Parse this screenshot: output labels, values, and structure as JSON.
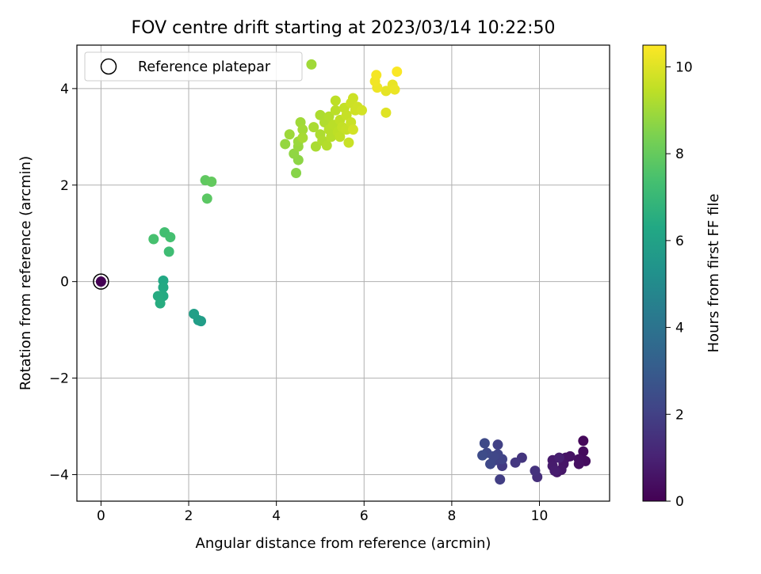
{
  "chart_data": {
    "type": "scatter",
    "title": "FOV centre drift starting at 2023/03/14 10:22:50",
    "xlabel": "Angular distance from reference (arcmin)",
    "ylabel": "Rotation from reference (arcmin)",
    "xlim": [
      -0.55,
      11.6
    ],
    "ylim": [
      -4.55,
      4.9
    ],
    "xticks": [
      "0",
      "2",
      "4",
      "6",
      "8",
      "10"
    ],
    "yticks": [
      "−4",
      "−2",
      "0",
      "2",
      "4"
    ],
    "grid": true,
    "legend": {
      "placement": "upper-left",
      "label": "Reference platepar"
    },
    "reference_point": {
      "x": 0,
      "y": 0
    },
    "colorbar": {
      "label": "Hours from first FF file",
      "range": [
        0,
        10.5
      ],
      "ticks": [
        "0",
        "2",
        "4",
        "6",
        "8",
        "10"
      ],
      "colormap": "viridis"
    },
    "points": [
      {
        "x": 0,
        "y": 0,
        "c": 0.0
      },
      {
        "x": 11.0,
        "y": -3.3,
        "c": 0.2
      },
      {
        "x": 11.0,
        "y": -3.52,
        "c": 0.3
      },
      {
        "x": 11.05,
        "y": -3.72,
        "c": 0.35
      },
      {
        "x": 10.9,
        "y": -3.68,
        "c": 0.4
      },
      {
        "x": 10.9,
        "y": -3.78,
        "c": 0.45
      },
      {
        "x": 10.7,
        "y": -3.62,
        "c": 0.5
      },
      {
        "x": 10.6,
        "y": -3.65,
        "c": 0.55
      },
      {
        "x": 10.55,
        "y": -3.78,
        "c": 0.6
      },
      {
        "x": 10.5,
        "y": -3.9,
        "c": 0.65
      },
      {
        "x": 10.4,
        "y": -3.95,
        "c": 0.7
      },
      {
        "x": 10.3,
        "y": -3.7,
        "c": 0.75
      },
      {
        "x": 10.3,
        "y": -3.82,
        "c": 0.8
      },
      {
        "x": 10.35,
        "y": -3.92,
        "c": 0.85
      },
      {
        "x": 10.45,
        "y": -3.65,
        "c": 0.9
      },
      {
        "x": 9.95,
        "y": -4.05,
        "c": 1.4
      },
      {
        "x": 9.9,
        "y": -3.92,
        "c": 1.5
      },
      {
        "x": 9.6,
        "y": -3.65,
        "c": 1.6
      },
      {
        "x": 9.45,
        "y": -3.75,
        "c": 1.7
      },
      {
        "x": 9.15,
        "y": -3.82,
        "c": 1.8
      },
      {
        "x": 9.1,
        "y": -4.1,
        "c": 1.9
      },
      {
        "x": 9.05,
        "y": -3.38,
        "c": 2.0
      },
      {
        "x": 9.0,
        "y": -3.7,
        "c": 2.05
      },
      {
        "x": 9.15,
        "y": -3.68,
        "c": 2.1
      },
      {
        "x": 9.05,
        "y": -3.58,
        "c": 2.15
      },
      {
        "x": 8.95,
        "y": -3.62,
        "c": 2.2
      },
      {
        "x": 8.88,
        "y": -3.78,
        "c": 2.25
      },
      {
        "x": 8.8,
        "y": -3.55,
        "c": 2.3
      },
      {
        "x": 8.75,
        "y": -3.35,
        "c": 2.35
      },
      {
        "x": 8.7,
        "y": -3.6,
        "c": 2.4
      },
      {
        "x": 2.28,
        "y": -0.82,
        "c": 5.8
      },
      {
        "x": 2.22,
        "y": -0.8,
        "c": 5.85
      },
      {
        "x": 2.12,
        "y": -0.67,
        "c": 5.9
      },
      {
        "x": 1.42,
        "y": 0.02,
        "c": 6.3
      },
      {
        "x": 1.42,
        "y": -0.12,
        "c": 6.35
      },
      {
        "x": 1.42,
        "y": -0.3,
        "c": 6.4
      },
      {
        "x": 1.3,
        "y": -0.3,
        "c": 6.45
      },
      {
        "x": 1.35,
        "y": -0.45,
        "c": 6.5
      },
      {
        "x": 1.55,
        "y": 0.62,
        "c": 7.2
      },
      {
        "x": 1.45,
        "y": 1.02,
        "c": 7.3
      },
      {
        "x": 1.58,
        "y": 0.92,
        "c": 7.35
      },
      {
        "x": 1.2,
        "y": 0.88,
        "c": 7.4
      },
      {
        "x": 2.42,
        "y": 1.72,
        "c": 7.8
      },
      {
        "x": 2.38,
        "y": 2.1,
        "c": 7.9
      },
      {
        "x": 2.52,
        "y": 2.07,
        "c": 7.95
      },
      {
        "x": 4.45,
        "y": 2.25,
        "c": 8.6
      },
      {
        "x": 4.5,
        "y": 2.52,
        "c": 8.7
      },
      {
        "x": 4.4,
        "y": 2.65,
        "c": 8.75
      },
      {
        "x": 4.2,
        "y": 2.85,
        "c": 8.8
      },
      {
        "x": 4.5,
        "y": 2.8,
        "c": 8.85
      },
      {
        "x": 4.5,
        "y": 2.9,
        "c": 8.9
      },
      {
        "x": 4.3,
        "y": 3.05,
        "c": 8.95
      },
      {
        "x": 4.55,
        "y": 3.3,
        "c": 9.0
      },
      {
        "x": 4.6,
        "y": 3.15,
        "c": 9.05
      },
      {
        "x": 4.6,
        "y": 2.98,
        "c": 9.1
      },
      {
        "x": 4.85,
        "y": 3.2,
        "c": 9.15
      },
      {
        "x": 4.9,
        "y": 2.8,
        "c": 9.15
      },
      {
        "x": 5.0,
        "y": 3.45,
        "c": 9.2
      },
      {
        "x": 5.0,
        "y": 3.05,
        "c": 9.2
      },
      {
        "x": 5.05,
        "y": 2.92,
        "c": 9.25
      },
      {
        "x": 5.1,
        "y": 3.3,
        "c": 9.25
      },
      {
        "x": 5.15,
        "y": 2.82,
        "c": 9.3
      },
      {
        "x": 5.2,
        "y": 3.42,
        "c": 9.3
      },
      {
        "x": 5.2,
        "y": 3.15,
        "c": 9.35
      },
      {
        "x": 5.25,
        "y": 3.0,
        "c": 9.35
      },
      {
        "x": 5.3,
        "y": 3.25,
        "c": 9.4
      },
      {
        "x": 5.35,
        "y": 3.55,
        "c": 9.4
      },
      {
        "x": 5.35,
        "y": 3.75,
        "c": 9.45
      },
      {
        "x": 5.4,
        "y": 3.1,
        "c": 9.45
      },
      {
        "x": 5.45,
        "y": 3.35,
        "c": 9.5
      },
      {
        "x": 5.45,
        "y": 3.0,
        "c": 9.5
      },
      {
        "x": 5.5,
        "y": 3.2,
        "c": 9.55
      },
      {
        "x": 5.55,
        "y": 3.6,
        "c": 9.55
      },
      {
        "x": 5.6,
        "y": 3.45,
        "c": 9.6
      },
      {
        "x": 5.6,
        "y": 3.15,
        "c": 9.6
      },
      {
        "x": 5.65,
        "y": 2.88,
        "c": 9.65
      },
      {
        "x": 5.7,
        "y": 3.3,
        "c": 9.65
      },
      {
        "x": 5.7,
        "y": 3.7,
        "c": 9.7
      },
      {
        "x": 5.75,
        "y": 3.8,
        "c": 9.7
      },
      {
        "x": 5.8,
        "y": 3.55,
        "c": 9.75
      },
      {
        "x": 5.85,
        "y": 3.62,
        "c": 9.75
      },
      {
        "x": 5.95,
        "y": 3.55,
        "c": 9.8
      },
      {
        "x": 5.75,
        "y": 3.15,
        "c": 9.8
      },
      {
        "x": 4.8,
        "y": 4.5,
        "c": 9.0
      },
      {
        "x": 6.5,
        "y": 3.5,
        "c": 10.0
      },
      {
        "x": 6.5,
        "y": 3.95,
        "c": 10.1
      },
      {
        "x": 6.65,
        "y": 4.08,
        "c": 10.15
      },
      {
        "x": 6.7,
        "y": 3.98,
        "c": 10.2
      },
      {
        "x": 6.3,
        "y": 4.02,
        "c": 10.25
      },
      {
        "x": 6.25,
        "y": 4.15,
        "c": 10.3
      },
      {
        "x": 6.28,
        "y": 4.28,
        "c": 10.35
      },
      {
        "x": 6.75,
        "y": 4.35,
        "c": 10.45
      }
    ]
  }
}
